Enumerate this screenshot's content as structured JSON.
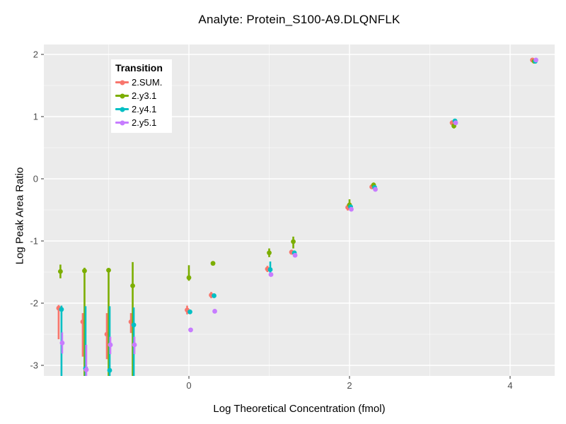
{
  "title": "Analyte: Protein_S100-A9.DLQNFLK",
  "chart_data": {
    "type": "scatter",
    "subtype": "pointrange-with-error-bars",
    "title": "Analyte: Protein_S100-A9.DLQNFLK",
    "xlabel": "Log Theoretical Concentration (fmol)",
    "ylabel": "Log Peak Area Ratio",
    "xlim": [
      -1.81,
      4.55
    ],
    "ylim": [
      -3.17,
      2.16
    ],
    "x_ticks": [
      0,
      2,
      4
    ],
    "y_ticks": [
      2,
      1,
      0,
      -1,
      -2,
      -3
    ],
    "x_minor_ticks": [
      -1,
      1,
      3
    ],
    "y_minor_ticks": [
      1.5,
      0.5,
      -0.5,
      -1.5,
      -2.5
    ],
    "grid": true,
    "legend_position": "inside-top-left",
    "legend_title": "Transition",
    "colors": {
      "panel_bg": "#EBEBEB",
      "grid_major": "#FFFFFF",
      "grid_minor": "#FFFFFF",
      "tick": "#333333",
      "tick_label": "#4D4D4D",
      "text": "#000000"
    },
    "series": [
      {
        "name": "2.SUM.",
        "color": "#F8766D",
        "dx": -2.5,
        "points": [
          {
            "x": -1.6,
            "y": -2.08,
            "lo": -2.58,
            "hi": -2.03
          },
          {
            "x": -1.3,
            "y": -2.3,
            "lo": -2.86,
            "hi": -2.16
          },
          {
            "x": -1.0,
            "y": -2.5,
            "lo": -2.9,
            "hi": -2.16
          },
          {
            "x": -0.7,
            "y": -2.3,
            "lo": -2.48,
            "hi": -2.16
          },
          {
            "x": 0.0,
            "y": -2.11,
            "lo": -2.18,
            "hi": -2.04
          },
          {
            "x": 0.3,
            "y": -1.87,
            "lo": -1.92,
            "hi": -1.82
          },
          {
            "x": 1.0,
            "y": -1.45,
            "lo": -1.5,
            "hi": -1.4
          },
          {
            "x": 1.3,
            "y": -1.18,
            "lo": -1.22,
            "hi": -1.14
          },
          {
            "x": 2.0,
            "y": -0.46,
            "lo": -0.51,
            "hi": -0.41
          },
          {
            "x": 2.3,
            "y": -0.13,
            "lo": -0.16,
            "hi": -0.1
          },
          {
            "x": 3.3,
            "y": 0.9,
            "lo": 0.86,
            "hi": 0.94
          },
          {
            "x": 4.3,
            "y": 1.91
          }
        ]
      },
      {
        "name": "2.y3.1",
        "color": "#7CAE00",
        "dx": 0,
        "points": [
          {
            "x": -1.6,
            "y": -1.49,
            "lo": -1.6,
            "hi": -1.38
          },
          {
            "x": -1.3,
            "y": -1.48,
            "lo": -3.2,
            "hi": -1.43
          },
          {
            "x": -1.0,
            "y": -1.47,
            "lo": -3.2,
            "hi": -1.44
          },
          {
            "x": -0.7,
            "y": -1.72,
            "lo": -3.2,
            "hi": -1.34
          },
          {
            "x": 0.0,
            "y": -1.59,
            "lo": -1.64,
            "hi": -1.39
          },
          {
            "x": 0.3,
            "y": -1.36
          },
          {
            "x": 1.0,
            "y": -1.19,
            "lo": -1.26,
            "hi": -1.12
          },
          {
            "x": 1.3,
            "y": -1.01,
            "lo": -1.12,
            "hi": -0.93
          },
          {
            "x": 2.0,
            "y": -0.42,
            "lo": -0.48,
            "hi": -0.33
          },
          {
            "x": 2.3,
            "y": -0.1,
            "lo": -0.14,
            "hi": -0.06
          },
          {
            "x": 3.3,
            "y": 0.85,
            "lo": 0.81,
            "hi": 0.89
          },
          {
            "x": 4.3,
            "y": 1.89
          }
        ]
      },
      {
        "name": "2.y4.1",
        "color": "#00BFC4",
        "dx": 1.5,
        "points": [
          {
            "x": -1.6,
            "y": -2.1,
            "lo": -3.2,
            "hi": -2.04
          },
          {
            "x": -1.3,
            "y": -3.05,
            "lo": -3.2,
            "hi": -2.05
          },
          {
            "x": -1.0,
            "y": -3.08,
            "lo": -3.2,
            "hi": -2.05
          },
          {
            "x": -0.7,
            "y": -2.35,
            "lo": -3.2,
            "hi": -2.07
          },
          {
            "x": 0.0,
            "y": -2.14
          },
          {
            "x": 0.3,
            "y": -1.88
          },
          {
            "x": 1.0,
            "y": -1.46,
            "lo": -1.52,
            "hi": -1.33
          },
          {
            "x": 1.3,
            "y": -1.19
          },
          {
            "x": 2.0,
            "y": -0.45
          },
          {
            "x": 2.3,
            "y": -0.14
          },
          {
            "x": 3.3,
            "y": 0.93
          },
          {
            "x": 4.3,
            "y": 1.89
          }
        ]
      },
      {
        "name": "2.y5.1",
        "color": "#C77CFF",
        "dx": 2.5,
        "points": [
          {
            "x": -1.6,
            "y": -2.64,
            "lo": -2.81,
            "hi": -2.47
          },
          {
            "x": -1.3,
            "y": -3.07,
            "lo": -3.2,
            "hi": -2.67
          },
          {
            "x": -1.0,
            "y": -2.67,
            "lo": -2.82,
            "hi": -2.54
          },
          {
            "x": -0.7,
            "y": -2.67,
            "lo": -2.82,
            "hi": -2.54
          },
          {
            "x": 0.0,
            "y": -2.43
          },
          {
            "x": 0.3,
            "y": -2.13
          },
          {
            "x": 1.0,
            "y": -1.54
          },
          {
            "x": 1.3,
            "y": -1.23
          },
          {
            "x": 2.0,
            "y": -0.49
          },
          {
            "x": 2.3,
            "y": -0.17
          },
          {
            "x": 3.3,
            "y": 0.9
          },
          {
            "x": 4.3,
            "y": 1.91
          }
        ]
      }
    ]
  }
}
